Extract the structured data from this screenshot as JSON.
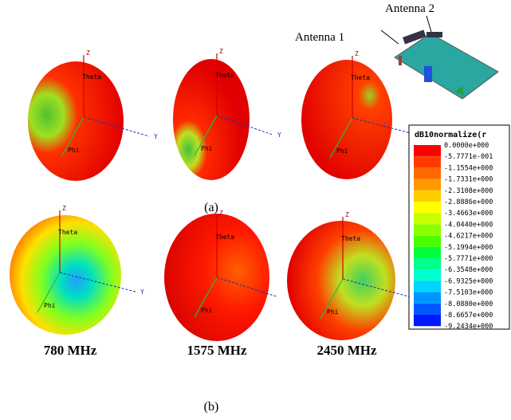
{
  "inset": {
    "antenna2": "Antenna 2",
    "antenna1": "Antenna 1"
  },
  "plots": [
    {
      "z": "Z",
      "theta": "Theta",
      "phi": "Phi",
      "y": "Y"
    },
    {
      "z": "Z",
      "theta": "Theta",
      "phi": "Phi",
      "y": "Y"
    },
    {
      "z": "Z",
      "theta": "Theta",
      "phi": "Phi"
    },
    {
      "z": "Z",
      "theta": "Theta",
      "phi": "Phi",
      "y": "Y"
    },
    {
      "z": "Z",
      "theta": "Theta",
      "phi": "Phi"
    },
    {
      "z": "Z",
      "theta": "Theta",
      "phi": "Phi"
    }
  ],
  "captions": {
    "a": "(a)",
    "b": "(b)"
  },
  "frequencies": [
    "780 MHz",
    "1575 MHz",
    "2450 MHz"
  ],
  "legend": {
    "title": "dB10normalize(r",
    "labels": [
      "0.0000e+000",
      "-5.7771e-001",
      "-1.1554e+000",
      "-1.7331e+000",
      "-2.3108e+000",
      "-2.8886e+000",
      "-3.4663e+000",
      "-4.0440e+000",
      "-4.6217e+000",
      "-5.1994e+000",
      "-5.7771e+000",
      "-6.3548e+000",
      "-6.9325e+000",
      "-7.5103e+000",
      "-8.0880e+000",
      "-8.6657e+000",
      "-9.2434e+000"
    ],
    "colors": [
      "#ff0000",
      "#ff3a00",
      "#ff6a00",
      "#ff9a00",
      "#ffcc00",
      "#ffff00",
      "#c8ff00",
      "#8cff00",
      "#4cff00",
      "#00ff3a",
      "#00ff8c",
      "#00ffd0",
      "#00d4ff",
      "#0096ff",
      "#0058ff",
      "#0018ff"
    ]
  }
}
